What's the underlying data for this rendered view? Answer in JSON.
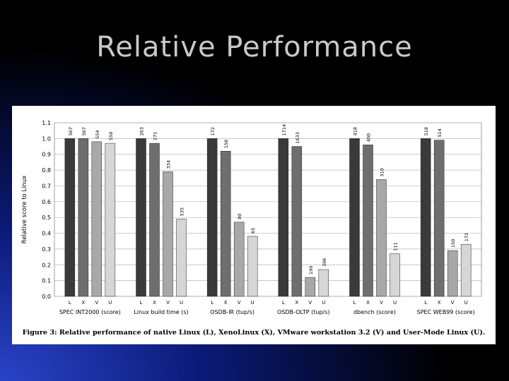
{
  "slide": {
    "title": "Relative Performance"
  },
  "figure": {
    "caption": "Figure 3: Relative performance of native Linux (L), XenoLinux (X), VMware workstation 3.2 (V) and User-Mode Linux (U)."
  },
  "chart_data": {
    "type": "bar",
    "ylabel": "Relative score to Linux",
    "ylim": [
      0,
      1.1
    ],
    "yticks": [
      "0.0",
      "0.1",
      "0.2",
      "0.3",
      "0.4",
      "0.5",
      "0.6",
      "0.7",
      "0.8",
      "0.9",
      "1.0",
      "1.1"
    ],
    "grid": true,
    "categories": [
      "SPEC INT2000 (score)",
      "Linux build time (s)",
      "OSDB-IR (tup/s)",
      "OSDB-OLTP (tup/s)",
      "dbench (score)",
      "SPEC WEB99 (score)"
    ],
    "series": [
      {
        "name": "L",
        "color": "#3a3a3a",
        "values": [
          1.0,
          1.0,
          1.0,
          1.0,
          1.0,
          1.0
        ],
        "labels": [
          "567",
          "263",
          "172",
          "1714",
          "418",
          "518"
        ]
      },
      {
        "name": "X",
        "color": "#6e6e6e",
        "values": [
          1.0,
          0.97,
          0.92,
          0.95,
          0.96,
          0.99
        ],
        "labels": [
          "567",
          "271",
          "158",
          "1633",
          "400",
          "514"
        ]
      },
      {
        "name": "V",
        "color": "#a8a8a8",
        "values": [
          0.98,
          0.79,
          0.47,
          0.12,
          0.74,
          0.29
        ],
        "labels": [
          "554",
          "334",
          "80",
          "199",
          "310",
          "150"
        ]
      },
      {
        "name": "U",
        "color": "#d6d6d6",
        "values": [
          0.97,
          0.49,
          0.38,
          0.17,
          0.27,
          0.33
        ],
        "labels": [
          "550",
          "535",
          "65",
          "306",
          "111",
          "172"
        ]
      }
    ]
  }
}
